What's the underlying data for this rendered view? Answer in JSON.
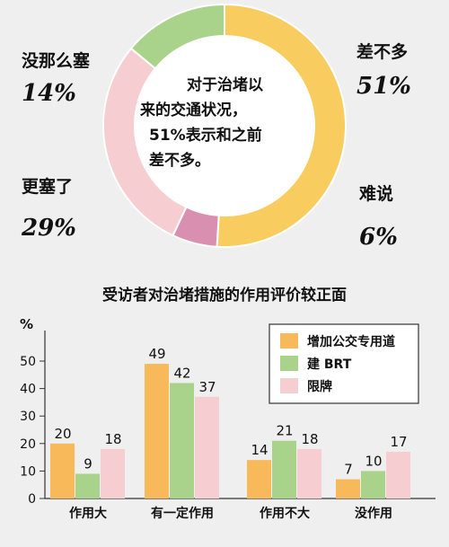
{
  "chart_data": [
    {
      "type": "pie",
      "center_text": [
        "对于治堵以",
        "来的交通状况，",
        "51%表示和之前",
        "差不多。"
      ],
      "slices": [
        {
          "label": "差不多",
          "value": 51,
          "value_label": "51%",
          "color": "#f9cc5f"
        },
        {
          "label": "难说",
          "value": 6,
          "value_label": "6%",
          "color": "#d98fb0"
        },
        {
          "label": "更塞了",
          "value": 29,
          "value_label": "29%",
          "color": "#f6cdd1"
        },
        {
          "label": "没那么塞",
          "value": 14,
          "value_label": "14%",
          "color": "#a9d28a"
        }
      ]
    },
    {
      "type": "bar",
      "title": "受访者对治堵措施的作用评价较正面",
      "ylabel": "%",
      "ylim": [
        0,
        60
      ],
      "yticks": [
        0,
        10,
        20,
        30,
        40,
        50
      ],
      "categories": [
        "作用大",
        "有一定作用",
        "作用不大",
        "没作用"
      ],
      "series": [
        {
          "name": "增加公交专用道",
          "values": [
            20,
            49,
            14,
            7
          ],
          "color": "#f8b95a"
        },
        {
          "name": "建 BRT",
          "values": [
            9,
            42,
            21,
            10
          ],
          "color": "#a9d28a"
        },
        {
          "name": "限牌",
          "values": [
            18,
            37,
            18,
            17
          ],
          "color": "#f6cdd1"
        }
      ],
      "legend": "top-right"
    }
  ]
}
